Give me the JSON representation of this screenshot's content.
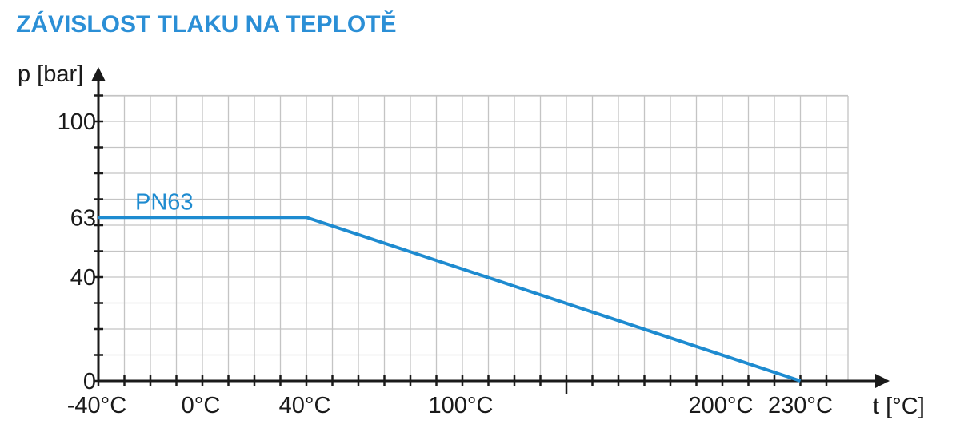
{
  "chart_data": {
    "type": "line",
    "title": "ZÁVISLOST TLAKU NA TEPLOTĚ",
    "xlabel": "t [°C]",
    "ylabel": "p [bar]",
    "x_tick_labels": [
      "-40°C",
      "0°C",
      "40°C",
      "100°C",
      "200°C",
      "230°C"
    ],
    "x_tick_values": [
      -40,
      0,
      40,
      100,
      200,
      230
    ],
    "y_tick_labels": [
      "0",
      "40",
      "63",
      "100"
    ],
    "y_tick_values": [
      0,
      40,
      63,
      100
    ],
    "xlim": [
      -40,
      260
    ],
    "ylim": [
      0,
      110
    ],
    "grid": true,
    "series": [
      {
        "name": "PN63",
        "x": [
          -40,
          40,
          230
        ],
        "y": [
          63,
          63,
          0
        ]
      }
    ]
  },
  "colors": {
    "accent": "#2b8fd6",
    "series": "#1e8bd0",
    "grid": "#c4c4c4",
    "axis": "#1a1a1a"
  }
}
